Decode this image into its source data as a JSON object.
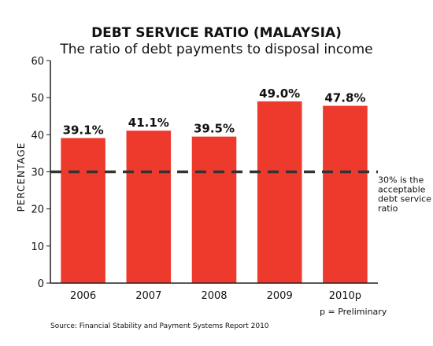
{
  "chart_data": {
    "type": "bar",
    "title": "DEBT SERVICE RATIO (MALAYSIA)",
    "subtitle": "The ratio of debt payments to disposal income",
    "ylabel": "PERCENTAGE",
    "xlabel": "",
    "ylim": [
      0,
      60
    ],
    "yticks": [
      0,
      10,
      20,
      30,
      40,
      50,
      60
    ],
    "categories": [
      "2006",
      "2007",
      "2008",
      "2009",
      "2010p"
    ],
    "values": [
      39.1,
      41.1,
      39.5,
      49.0,
      47.8
    ],
    "data_labels": [
      "39.1%",
      "41.1%",
      "39.5%",
      "49.0%",
      "47.8%"
    ],
    "bar_color": "#ee3a2c",
    "grid": false,
    "reference_line": {
      "value": 30,
      "style": "dashed",
      "color": "#333333",
      "annotation": [
        "30% is the",
        "acceptable",
        "debt service",
        "ratio"
      ]
    },
    "footnote": "p = Preliminary",
    "source": "Source: Financial Stability and Payment Systems Report 2010"
  }
}
